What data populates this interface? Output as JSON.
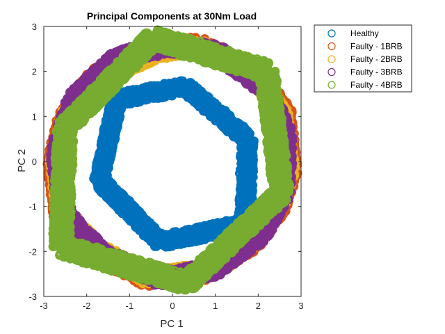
{
  "chart_data": {
    "type": "scatter",
    "title": "Principal Components at 30Nm Load",
    "xlabel": "PC 1",
    "ylabel": "PC 2",
    "xlim": [
      -3,
      3
    ],
    "ylim": [
      -3,
      3
    ],
    "xticks": [
      -3,
      -2,
      -1,
      0,
      1,
      2,
      3
    ],
    "yticks": [
      -3,
      -2,
      -1,
      0,
      1,
      2,
      3
    ],
    "grid": false,
    "legend_position": "outside-top-right",
    "marker": "open-circle",
    "series": [
      {
        "name": "Healthy",
        "color": "#0072BD",
        "band_width": 0.3,
        "polygon": [
          [
            0.3,
            1.67
          ],
          [
            1.75,
            0.5
          ],
          [
            1.7,
            -1.38
          ],
          [
            -0.28,
            -1.79
          ],
          [
            -1.7,
            -0.43
          ],
          [
            -1.3,
            1.38
          ]
        ]
      },
      {
        "name": "Faulty - 1BRB",
        "color": "#D95319",
        "band_width": 0.36,
        "polygon": [
          [
            -0.3,
            2.5
          ],
          [
            0.6,
            2.6
          ],
          [
            1.9,
            2.0
          ],
          [
            2.6,
            1.1
          ],
          [
            2.75,
            -0.2
          ],
          [
            2.5,
            -1.0
          ],
          [
            1.9,
            -1.8
          ],
          [
            0.8,
            -2.45
          ],
          [
            -0.6,
            -2.6
          ],
          [
            -1.8,
            -2.0
          ],
          [
            -2.6,
            -1.2
          ],
          [
            -2.75,
            0.0
          ],
          [
            -2.5,
            1.0
          ],
          [
            -1.8,
            1.9
          ]
        ]
      },
      {
        "name": "Faulty - 2BRB",
        "color": "#EDB120",
        "band_width": 0.34,
        "polygon": [
          [
            -0.3,
            2.45
          ],
          [
            0.6,
            2.55
          ],
          [
            1.9,
            1.95
          ],
          [
            2.55,
            1.05
          ],
          [
            2.7,
            -0.2
          ],
          [
            2.45,
            -1.0
          ],
          [
            1.85,
            -1.75
          ],
          [
            0.8,
            -2.45
          ],
          [
            -0.6,
            -2.55
          ],
          [
            -1.75,
            -1.95
          ],
          [
            -2.55,
            -1.15
          ],
          [
            -2.7,
            0.0
          ],
          [
            -2.45,
            1.0
          ],
          [
            -1.75,
            1.85
          ]
        ]
      },
      {
        "name": "Faulty - 3BRB",
        "color": "#7E2F8E",
        "band_width": 0.34,
        "polygon": [
          [
            -0.2,
            2.55
          ],
          [
            1.0,
            2.45
          ],
          [
            2.2,
            1.6
          ],
          [
            2.65,
            0.6
          ],
          [
            2.6,
            -0.7
          ],
          [
            2.1,
            -1.6
          ],
          [
            1.0,
            -2.4
          ],
          [
            -0.3,
            -2.6
          ],
          [
            -1.6,
            -2.1
          ],
          [
            -2.5,
            -1.2
          ],
          [
            -2.7,
            0.2
          ],
          [
            -2.3,
            1.4
          ],
          [
            -1.3,
            2.3
          ]
        ]
      },
      {
        "name": "Faulty - 4BRB",
        "color": "#77AC30",
        "band_width": 0.4,
        "polygon": [
          [
            -0.45,
            2.75
          ],
          [
            2.2,
            2.0
          ],
          [
            2.55,
            -0.7
          ],
          [
            0.35,
            -2.7
          ],
          [
            -2.6,
            -1.9
          ],
          [
            -2.5,
            0.75
          ]
        ]
      }
    ]
  }
}
